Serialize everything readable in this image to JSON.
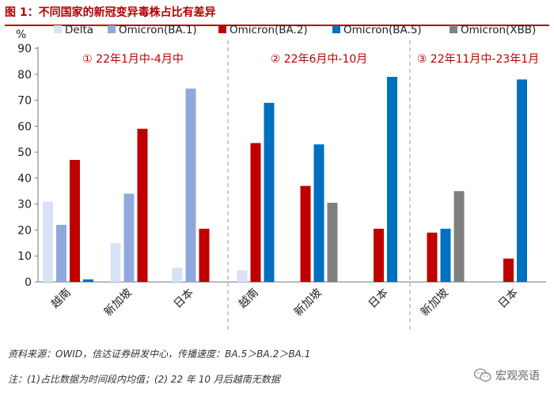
{
  "figure_title": "图 1：不同国家的新冠变异毒株占比有差异",
  "source_note": "资料来源：OWID，信达证券研发中心，传播速度：BA.5＞BA.2＞BA.1",
  "footnote": "注：(1)占比数据为时间段内均值；(2) 22 年 10 月后越南无数据",
  "watermark": "宏观亮语",
  "colors": {
    "title": "#b30000",
    "Delta": "#d6e3f5",
    "Omicron(BA.1)": "#8fa9df",
    "Omicron(BA.2)": "#c00000",
    "Omicron(BA.5)": "#0070c0",
    "Omicron(XBB)": "#808080",
    "period_label": "#c00000"
  },
  "chart_data": {
    "type": "bar",
    "y_unit": "%",
    "ylim": [
      0,
      90
    ],
    "yticks": [
      0,
      10,
      20,
      30,
      40,
      50,
      60,
      70,
      80,
      90
    ],
    "grid": false,
    "legend_position": "top",
    "series_names": [
      "Delta",
      "Omicron(BA.1)",
      "Omicron(BA.2)",
      "Omicron(BA.5)",
      "Omicron(XBB)"
    ],
    "periods": [
      {
        "label": "① 22年1月中-4月中",
        "groups": [
          {
            "category": "越南",
            "values": [
              {
                "series": "Delta",
                "value": 31
              },
              {
                "series": "Omicron(BA.1)",
                "value": 22
              },
              {
                "series": "Omicron(BA.2)",
                "value": 47
              },
              {
                "series": "Omicron(BA.5)",
                "value": 1
              }
            ]
          },
          {
            "category": "新加坡",
            "values": [
              {
                "series": "Delta",
                "value": 15
              },
              {
                "series": "Omicron(BA.1)",
                "value": 34
              },
              {
                "series": "Omicron(BA.2)",
                "value": 59
              }
            ]
          },
          {
            "category": "日本",
            "values": [
              {
                "series": "Delta",
                "value": 5.5
              },
              {
                "series": "Omicron(BA.1)",
                "value": 74.5
              },
              {
                "series": "Omicron(BA.2)",
                "value": 20.5
              }
            ]
          }
        ]
      },
      {
        "label": "② 22年6月中-10月",
        "groups": [
          {
            "category": "越南",
            "values": [
              {
                "series": "Delta",
                "value": 4.5
              },
              {
                "series": "Omicron(BA.2)",
                "value": 53.5
              },
              {
                "series": "Omicron(BA.5)",
                "value": 69
              }
            ]
          },
          {
            "category": "新加坡",
            "values": [
              {
                "series": "Omicron(BA.2)",
                "value": 37
              },
              {
                "series": "Omicron(BA.5)",
                "value": 53
              },
              {
                "series": "Omicron(XBB)",
                "value": 30.5
              }
            ]
          },
          {
            "category": "日本",
            "values": [
              {
                "series": "Omicron(BA.2)",
                "value": 20.5
              },
              {
                "series": "Omicron(BA.5)",
                "value": 79
              }
            ]
          }
        ]
      },
      {
        "label": "③ 22年11月中-23年1月",
        "groups": [
          {
            "category": "新加坡",
            "values": [
              {
                "series": "Omicron(BA.2)",
                "value": 19
              },
              {
                "series": "Omicron(BA.5)",
                "value": 20.5
              },
              {
                "series": "Omicron(XBB)",
                "value": 35
              }
            ]
          },
          {
            "category": "日本",
            "values": [
              {
                "series": "Omicron(BA.2)",
                "value": 9
              },
              {
                "series": "Omicron(BA.5)",
                "value": 78
              }
            ]
          }
        ]
      }
    ]
  }
}
